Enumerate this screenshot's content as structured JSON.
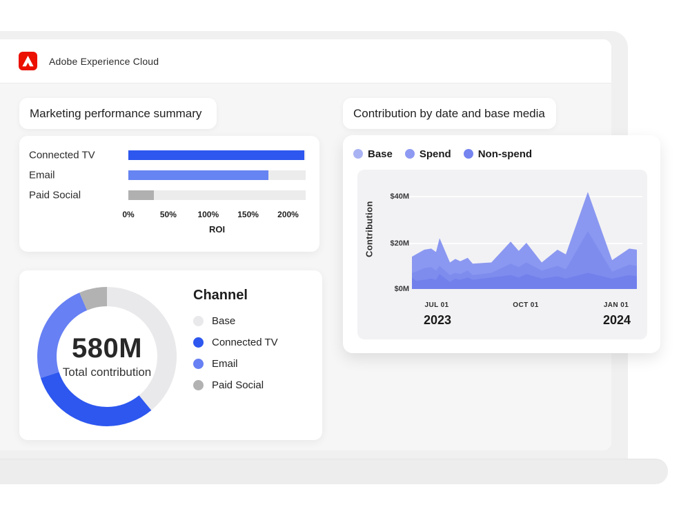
{
  "header": {
    "brand": "Adobe Experience Cloud"
  },
  "colors": {
    "accent_blue": "#2d57ef",
    "light_blue": "#6780f3",
    "gray": "#b0b0b0",
    "track": "#ececec",
    "adobe_red": "#eb1000"
  },
  "chart_data": [
    {
      "id": "roi_by_channel",
      "type": "bar",
      "orientation": "horizontal",
      "title": "Marketing performance summary",
      "categories": [
        "Connected TV",
        "Email",
        "Paid Social"
      ],
      "values": [
        220,
        175,
        32
      ],
      "unit": "%",
      "xlabel": "ROI",
      "xlim": [
        0,
        222
      ],
      "xticks": [
        "0%",
        "50%",
        "100%",
        "150%",
        "200%"
      ],
      "xtick_values": [
        0,
        50,
        100,
        150,
        200
      ],
      "bar_colors": [
        "#2d57ef",
        "#6684f2",
        "#b0b0b0"
      ],
      "track_color": "#ececec",
      "grid": false
    },
    {
      "id": "total_contribution_donut",
      "type": "pie",
      "title": "Channel",
      "center_value": "580M",
      "center_label": "Total contribution",
      "segments": [
        {
          "label": "Base",
          "percent": 39.0,
          "color": "#e9e9eb"
        },
        {
          "label": "Connected TV",
          "percent": 31.0,
          "color": "#2d57ef"
        },
        {
          "label": "Email",
          "percent": 23.5,
          "color": "#6780f3"
        },
        {
          "label": "Paid Social",
          "percent": 6.5,
          "color": "#b2b2b2"
        }
      ]
    },
    {
      "id": "contribution_by_date",
      "type": "area",
      "title": "Contribution by date and base media",
      "ylabel": "Contribution",
      "ylim": [
        0,
        40
      ],
      "yticks": [
        "$40M",
        "$20M",
        "$0M"
      ],
      "ytick_values": [
        40,
        20,
        0
      ],
      "xticks": [
        "JUL 01",
        "OCT 01",
        "JAN 01"
      ],
      "year_labels": [
        "2023",
        "2024"
      ],
      "legend_position": "top",
      "grid": true,
      "x": [
        0,
        0.018,
        0.055,
        0.086,
        0.107,
        0.123,
        0.169,
        0.193,
        0.215,
        0.248,
        0.27,
        0.353,
        0.439,
        0.475,
        0.509,
        0.577,
        0.647,
        0.684,
        0.782,
        0.89,
        0.966,
        1
      ],
      "series": [
        {
          "name": "Base",
          "color": "#8b98f1",
          "values": [
            14,
            15,
            17,
            17.5,
            16,
            22,
            11.5,
            13,
            12,
            13.5,
            11,
            11.5,
            20.5,
            16.5,
            20,
            11.5,
            17,
            15,
            42,
            12.5,
            17.5,
            17
          ]
        },
        {
          "name": "Spend",
          "color": "#7e8cee",
          "values": [
            7,
            7.5,
            9,
            9.5,
            8,
            10,
            6,
            7,
            6.5,
            8,
            6,
            7,
            11,
            9.5,
            11.5,
            8,
            10,
            8.5,
            25,
            7.5,
            10.5,
            10
          ]
        },
        {
          "name": "Non-spend",
          "color": "#7280ec",
          "values": [
            5,
            3.5,
            4,
            4.5,
            4,
            6.5,
            3,
            4.5,
            4,
            5,
            4,
            5,
            6,
            5,
            6.5,
            4.5,
            5.5,
            4.5,
            7,
            4.5,
            6,
            5.5
          ]
        }
      ],
      "legend": [
        {
          "label": "Base",
          "color": "#a9b3f3"
        },
        {
          "label": "Spend",
          "color": "#8e9af2"
        },
        {
          "label": "Non-spend",
          "color": "#7584ef"
        }
      ]
    }
  ]
}
